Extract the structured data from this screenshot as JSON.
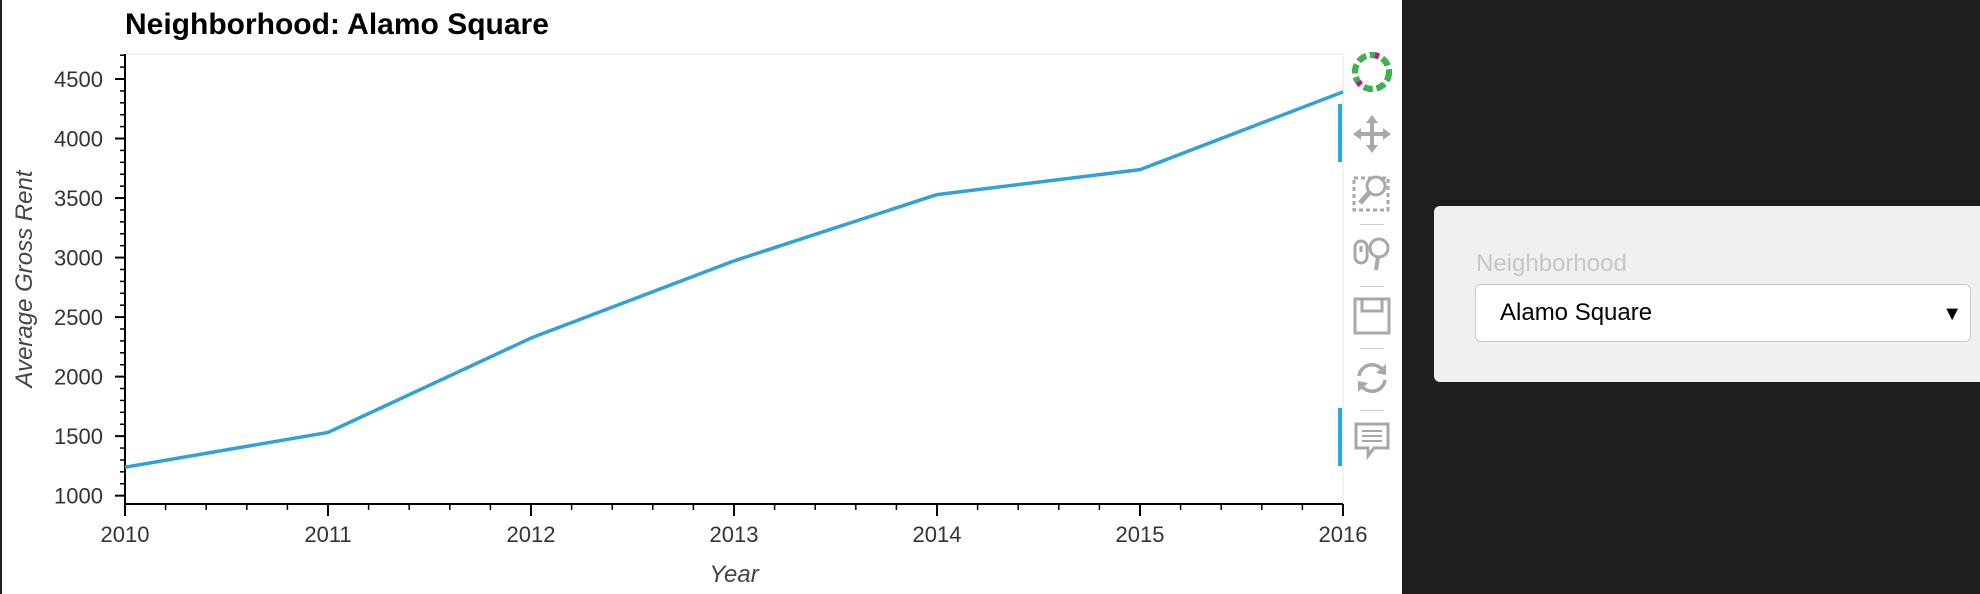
{
  "chart_data": {
    "type": "line",
    "title": "Neighborhood: Alamo Square",
    "xlabel": "Year",
    "ylabel": "Average Gross Rent",
    "x": [
      2010,
      2011,
      2012,
      2013,
      2014,
      2015,
      2016
    ],
    "series": [
      {
        "values": [
          1239,
          1531,
          2324,
          2972,
          3529,
          3739,
          4392
        ]
      }
    ],
    "xlim": [
      2010,
      2016
    ],
    "ylim": [
      930,
      4710
    ],
    "x_ticks": [
      "2010",
      "2011",
      "2012",
      "2013",
      "2014",
      "2015",
      "2016"
    ],
    "y_ticks": [
      "1000",
      "1500",
      "2000",
      "2500",
      "3000",
      "3500",
      "4000",
      "4500"
    ],
    "line_color": "#30a2da",
    "grid": false
  },
  "toolbar": {
    "tools": [
      "bokeh-logo-icon",
      "pan-icon",
      "box-zoom-icon",
      "wheel-zoom-icon",
      "save-icon",
      "reset-icon",
      "hover-icon"
    ]
  },
  "widget": {
    "label": "Neighborhood",
    "selected": "Alamo Square",
    "arrow": "▼"
  },
  "colors": {
    "accent": "#26aae1",
    "dark_panel": "#1e1e1e",
    "widget_bg": "#f0f0f0"
  }
}
